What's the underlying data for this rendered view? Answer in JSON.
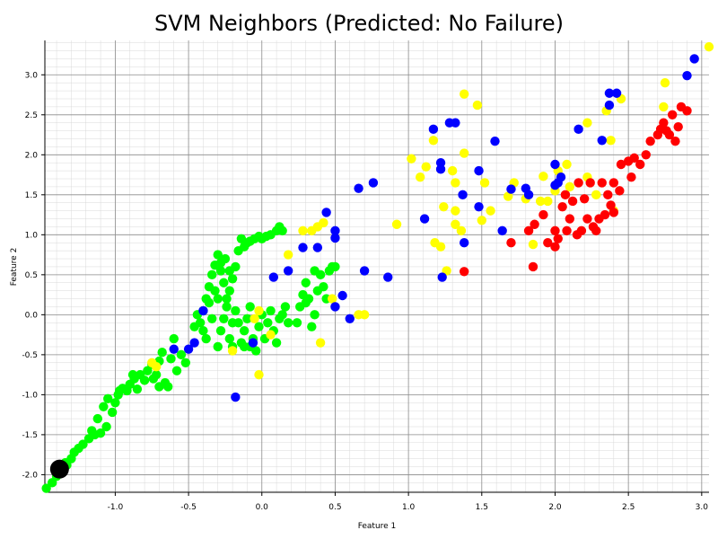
{
  "chart_data": {
    "type": "scatter",
    "title": "SVM Neighbors (Predicted: No Failure)",
    "xlabel": "Feature 1",
    "ylabel": "Feature 2",
    "xlim": [
      -1.48,
      3.05
    ],
    "ylim": [
      -2.22,
      3.43
    ],
    "xticks": [
      -1.0,
      -0.5,
      0.0,
      0.5,
      1.0,
      1.5,
      2.0,
      2.5,
      3.0
    ],
    "yticks": [
      -2.0,
      -1.5,
      -1.0,
      -0.5,
      0.0,
      0.5,
      1.0,
      1.5,
      2.0,
      2.5,
      3.0
    ],
    "xtick_labels": [
      "-1.0",
      "-0.5",
      "0.0",
      "0.5",
      "1.0",
      "1.5",
      "2.0",
      "2.5",
      "3.0"
    ],
    "ytick_labels": [
      "-2.0",
      "-1.5",
      "-1.0",
      "-0.5",
      "0.0",
      "0.5",
      "1.0",
      "1.5",
      "2.0",
      "2.5",
      "3.0"
    ],
    "grid": true,
    "minor_grid": true,
    "series": [
      {
        "color": "#00ff00",
        "points": [
          [
            -1.47,
            -2.17
          ],
          [
            -1.43,
            -2.1
          ],
          [
            -1.4,
            -2.02
          ],
          [
            -1.36,
            -1.95
          ],
          [
            -1.33,
            -1.88
          ],
          [
            -1.3,
            -1.8
          ],
          [
            -1.34,
            -1.85
          ],
          [
            -1.28,
            -1.72
          ],
          [
            -1.25,
            -1.67
          ],
          [
            -1.22,
            -1.62
          ],
          [
            -1.18,
            -1.55
          ],
          [
            -1.14,
            -1.5
          ],
          [
            -1.1,
            -1.48
          ],
          [
            -1.06,
            -1.4
          ],
          [
            -1.02,
            -1.22
          ],
          [
            -1.0,
            -1.1
          ],
          [
            -0.98,
            -1.0
          ],
          [
            -0.95,
            -0.92
          ],
          [
            -0.92,
            -0.95
          ],
          [
            -0.9,
            -0.87
          ],
          [
            -0.87,
            -0.8
          ],
          [
            -0.85,
            -0.93
          ],
          [
            -0.83,
            -0.75
          ],
          [
            -0.8,
            -0.82
          ],
          [
            -0.78,
            -0.7
          ],
          [
            -0.75,
            -0.62
          ],
          [
            -0.72,
            -0.75
          ],
          [
            -0.7,
            -0.58
          ],
          [
            -0.68,
            -0.47
          ],
          [
            -0.66,
            -0.85
          ],
          [
            -0.64,
            -0.9
          ],
          [
            -0.62,
            -0.55
          ],
          [
            -0.6,
            -0.3
          ],
          [
            -0.58,
            -0.7
          ],
          [
            -0.55,
            -0.5
          ],
          [
            -0.52,
            -0.6
          ],
          [
            -1.08,
            -1.15
          ],
          [
            -1.05,
            -1.05
          ],
          [
            -1.12,
            -1.3
          ],
          [
            -1.16,
            -1.45
          ],
          [
            -0.97,
            -0.95
          ],
          [
            -0.88,
            -0.75
          ],
          [
            -0.74,
            -0.8
          ],
          [
            -0.7,
            -0.9
          ],
          [
            -0.42,
            -0.1
          ],
          [
            -0.4,
            0.05
          ],
          [
            -0.38,
            0.2
          ],
          [
            -0.36,
            0.35
          ],
          [
            -0.34,
            0.5
          ],
          [
            -0.32,
            0.62
          ],
          [
            -0.3,
            0.75
          ],
          [
            -0.28,
            0.55
          ],
          [
            -0.26,
            0.4
          ],
          [
            -0.24,
            0.2
          ],
          [
            -0.22,
            0.3
          ],
          [
            -0.2,
            0.45
          ],
          [
            -0.18,
            0.6
          ],
          [
            -0.16,
            0.8
          ],
          [
            -0.14,
            0.95
          ],
          [
            -0.12,
            0.85
          ],
          [
            -0.1,
            0.9
          ],
          [
            -0.08,
            0.92
          ],
          [
            -0.05,
            0.95
          ],
          [
            -0.02,
            0.98
          ],
          [
            0.0,
            0.95
          ],
          [
            0.03,
            0.98
          ],
          [
            0.06,
            1.0
          ],
          [
            0.1,
            1.05
          ],
          [
            0.12,
            1.1
          ],
          [
            0.14,
            1.05
          ],
          [
            -0.3,
            -0.4
          ],
          [
            -0.28,
            -0.2
          ],
          [
            -0.26,
            -0.05
          ],
          [
            -0.24,
            0.1
          ],
          [
            -0.22,
            -0.3
          ],
          [
            -0.2,
            -0.1
          ],
          [
            -0.34,
            -0.05
          ],
          [
            -0.36,
            0.15
          ],
          [
            -0.38,
            -0.3
          ],
          [
            -0.4,
            -0.2
          ],
          [
            -0.44,
            0.0
          ],
          [
            -0.46,
            -0.15
          ],
          [
            -0.32,
            0.3
          ],
          [
            -0.3,
            0.2
          ],
          [
            -0.28,
            0.65
          ],
          [
            -0.25,
            0.7
          ],
          [
            -0.22,
            0.55
          ],
          [
            -0.14,
            -0.35
          ],
          [
            -0.12,
            -0.2
          ],
          [
            -0.1,
            -0.05
          ],
          [
            -0.08,
            0.1
          ],
          [
            -0.06,
            -0.3
          ],
          [
            -0.04,
            -0.45
          ],
          [
            -0.02,
            -0.15
          ],
          [
            0.0,
            0.0
          ],
          [
            0.02,
            -0.3
          ],
          [
            0.04,
            -0.1
          ],
          [
            0.06,
            0.05
          ],
          [
            0.08,
            -0.2
          ],
          [
            0.1,
            -0.35
          ],
          [
            0.12,
            -0.05
          ],
          [
            0.14,
            0.0
          ],
          [
            0.16,
            0.1
          ],
          [
            0.18,
            -0.1
          ],
          [
            -0.16,
            -0.1
          ],
          [
            -0.18,
            0.05
          ],
          [
            -0.2,
            -0.4
          ],
          [
            -0.12,
            -0.4
          ],
          [
            -0.08,
            -0.4
          ],
          [
            0.24,
            -0.1
          ],
          [
            0.26,
            0.1
          ],
          [
            0.28,
            0.25
          ],
          [
            0.3,
            0.4
          ],
          [
            0.32,
            0.2
          ],
          [
            0.34,
            -0.15
          ],
          [
            0.36,
            0.0
          ],
          [
            0.38,
            0.3
          ],
          [
            0.4,
            0.5
          ],
          [
            0.42,
            0.35
          ],
          [
            0.44,
            0.2
          ],
          [
            0.46,
            0.55
          ],
          [
            0.48,
            0.6
          ],
          [
            0.5,
            0.6
          ],
          [
            0.36,
            0.55
          ],
          [
            0.3,
            0.15
          ]
        ]
      },
      {
        "color": "#ffff00",
        "points": [
          [
            0.28,
            1.05
          ],
          [
            0.34,
            1.05
          ],
          [
            0.38,
            1.1
          ],
          [
            0.42,
            1.15
          ],
          [
            0.18,
            0.75
          ],
          [
            0.48,
            0.2
          ],
          [
            0.66,
            0.0
          ],
          [
            0.7,
            0.0
          ],
          [
            0.4,
            -0.35
          ],
          [
            -0.2,
            -0.45
          ],
          [
            -0.75,
            -0.6
          ],
          [
            -0.72,
            -0.65
          ],
          [
            -0.02,
            0.05
          ],
          [
            -0.05,
            -0.05
          ],
          [
            0.06,
            -0.25
          ],
          [
            -0.02,
            -0.75
          ],
          [
            0.92,
            1.13
          ],
          [
            1.02,
            1.95
          ],
          [
            1.08,
            1.72
          ],
          [
            1.12,
            1.85
          ],
          [
            1.17,
            2.18
          ],
          [
            1.18,
            0.9
          ],
          [
            1.22,
            0.85
          ],
          [
            1.24,
            1.35
          ],
          [
            1.26,
            0.55
          ],
          [
            1.3,
            1.8
          ],
          [
            1.32,
            1.65
          ],
          [
            1.32,
            1.3
          ],
          [
            1.32,
            1.13
          ],
          [
            1.36,
            1.05
          ],
          [
            1.38,
            2.02
          ],
          [
            1.38,
            2.76
          ],
          [
            1.47,
            2.62
          ],
          [
            1.5,
            1.18
          ],
          [
            1.52,
            1.65
          ],
          [
            1.56,
            1.3
          ],
          [
            1.68,
            1.48
          ],
          [
            1.72,
            1.65
          ],
          [
            1.8,
            1.45
          ],
          [
            1.85,
            0.88
          ],
          [
            1.9,
            1.42
          ],
          [
            1.92,
            1.73
          ],
          [
            1.95,
            1.42
          ],
          [
            2.0,
            1.55
          ],
          [
            2.02,
            1.8
          ],
          [
            2.08,
            1.88
          ],
          [
            2.1,
            1.6
          ],
          [
            2.22,
            1.72
          ],
          [
            2.22,
            2.4
          ],
          [
            2.28,
            1.5
          ],
          [
            2.35,
            2.55
          ],
          [
            2.38,
            2.18
          ],
          [
            2.4,
            1.3
          ],
          [
            2.45,
            2.7
          ],
          [
            2.74,
            2.6
          ],
          [
            2.75,
            2.9
          ],
          [
            3.05,
            3.35
          ]
        ]
      },
      {
        "color": "#0000ff",
        "points": [
          [
            -0.6,
            -0.43
          ],
          [
            -0.5,
            -0.43
          ],
          [
            -0.46,
            -0.35
          ],
          [
            -0.4,
            0.05
          ],
          [
            -0.18,
            -1.03
          ],
          [
            -0.06,
            -0.35
          ],
          [
            0.08,
            0.47
          ],
          [
            0.18,
            0.55
          ],
          [
            0.28,
            0.84
          ],
          [
            0.38,
            0.84
          ],
          [
            0.44,
            1.28
          ],
          [
            0.5,
            1.05
          ],
          [
            0.5,
            0.96
          ],
          [
            0.5,
            0.1
          ],
          [
            0.55,
            0.24
          ],
          [
            0.6,
            -0.05
          ],
          [
            0.66,
            1.58
          ],
          [
            0.7,
            0.55
          ],
          [
            0.76,
            1.65
          ],
          [
            0.86,
            0.47
          ],
          [
            1.11,
            1.2
          ],
          [
            1.17,
            2.32
          ],
          [
            1.22,
            1.9
          ],
          [
            1.22,
            1.82
          ],
          [
            1.23,
            0.47
          ],
          [
            1.28,
            2.4
          ],
          [
            1.32,
            2.4
          ],
          [
            1.37,
            1.5
          ],
          [
            1.38,
            0.9
          ],
          [
            1.48,
            1.8
          ],
          [
            1.48,
            1.35
          ],
          [
            1.59,
            2.17
          ],
          [
            1.64,
            1.05
          ],
          [
            1.7,
            1.57
          ],
          [
            1.8,
            1.58
          ],
          [
            1.82,
            1.5
          ],
          [
            2.0,
            1.88
          ],
          [
            2.0,
            1.62
          ],
          [
            2.02,
            1.65
          ],
          [
            2.04,
            1.72
          ],
          [
            2.16,
            2.32
          ],
          [
            2.32,
            2.18
          ],
          [
            2.37,
            2.77
          ],
          [
            2.37,
            2.62
          ],
          [
            2.42,
            2.77
          ],
          [
            2.9,
            2.99
          ],
          [
            2.95,
            3.2
          ]
        ]
      },
      {
        "color": "#ff0000",
        "points": [
          [
            1.38,
            0.54
          ],
          [
            1.7,
            0.9
          ],
          [
            1.82,
            1.05
          ],
          [
            1.85,
            0.6
          ],
          [
            1.86,
            1.13
          ],
          [
            1.92,
            1.25
          ],
          [
            1.95,
            0.9
          ],
          [
            2.0,
            1.05
          ],
          [
            2.0,
            0.85
          ],
          [
            2.02,
            0.95
          ],
          [
            2.05,
            1.35
          ],
          [
            2.07,
            1.5
          ],
          [
            2.08,
            1.05
          ],
          [
            2.1,
            1.2
          ],
          [
            2.12,
            1.42
          ],
          [
            2.15,
            1.0
          ],
          [
            2.16,
            1.65
          ],
          [
            2.18,
            1.05
          ],
          [
            2.2,
            1.45
          ],
          [
            2.22,
            1.2
          ],
          [
            2.24,
            1.65
          ],
          [
            2.26,
            1.1
          ],
          [
            2.28,
            1.05
          ],
          [
            2.3,
            1.2
          ],
          [
            2.32,
            1.65
          ],
          [
            2.34,
            1.25
          ],
          [
            2.36,
            1.5
          ],
          [
            2.38,
            1.37
          ],
          [
            2.4,
            1.65
          ],
          [
            2.45,
            1.88
          ],
          [
            2.5,
            1.92
          ],
          [
            2.52,
            1.72
          ],
          [
            2.54,
            1.96
          ],
          [
            2.58,
            1.88
          ],
          [
            2.62,
            2.0
          ],
          [
            2.65,
            2.17
          ],
          [
            2.7,
            2.25
          ],
          [
            2.72,
            2.32
          ],
          [
            2.74,
            2.4
          ],
          [
            2.76,
            2.3
          ],
          [
            2.78,
            2.25
          ],
          [
            2.8,
            2.5
          ],
          [
            2.82,
            2.17
          ],
          [
            2.84,
            2.35
          ],
          [
            2.86,
            2.6
          ],
          [
            2.9,
            2.55
          ],
          [
            2.4,
            1.28
          ],
          [
            2.44,
            1.55
          ]
        ]
      }
    ],
    "query_point": {
      "x": -1.38,
      "y": -1.93,
      "color": "#000000"
    }
  }
}
